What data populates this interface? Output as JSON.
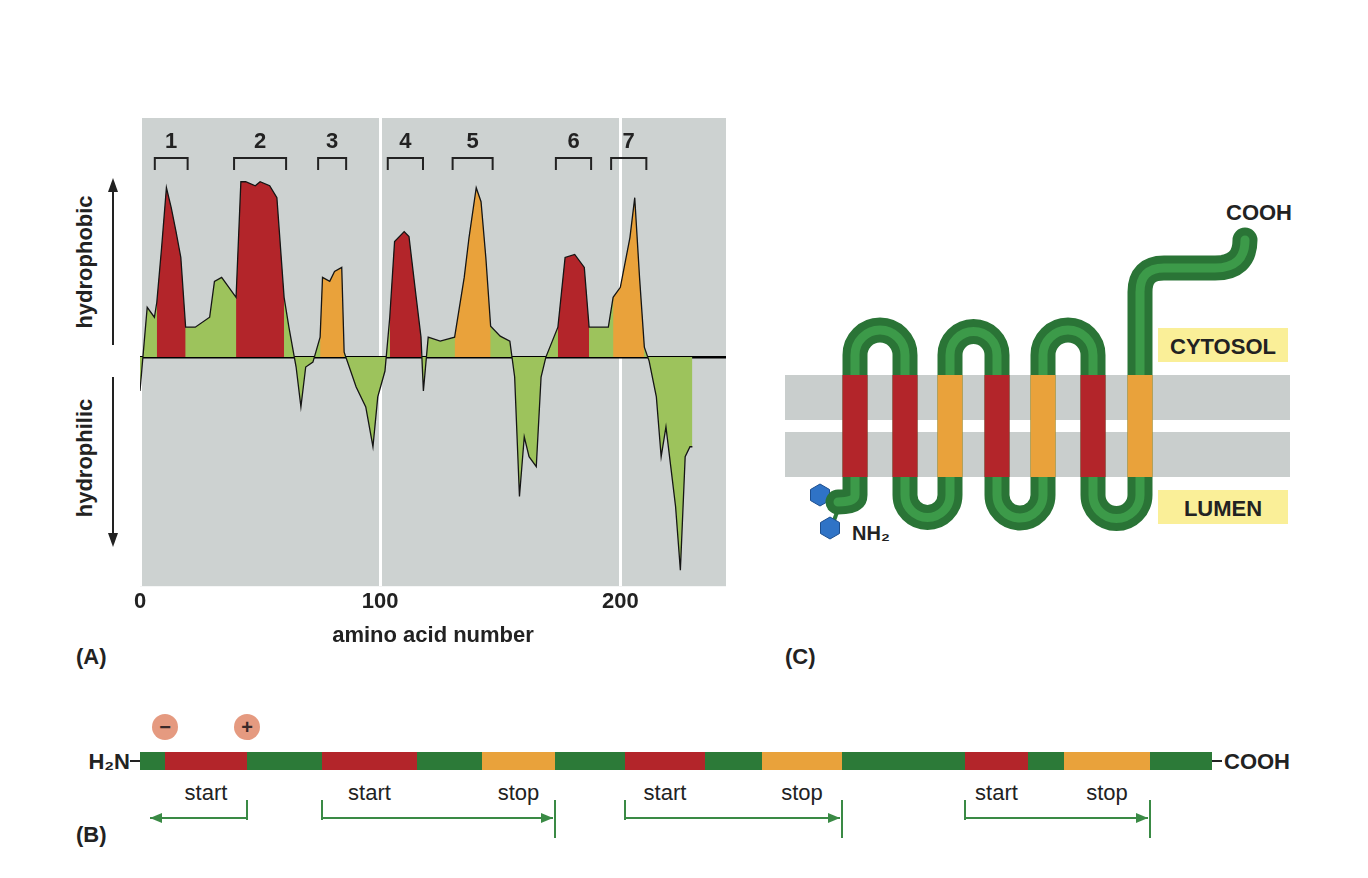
{
  "chart_data": {
    "type": "area",
    "panel_label": "(A)",
    "xlabel": "amino acid number",
    "y_label_top": "hydrophobic",
    "y_label_bottom": "hydrophilic",
    "x": [
      0,
      3,
      6,
      7,
      9,
      11,
      13,
      15,
      17,
      19,
      23,
      29,
      31,
      34,
      37,
      40,
      42,
      44,
      48,
      50,
      54,
      57,
      60,
      62,
      65,
      67,
      69,
      72,
      75,
      76,
      79,
      81,
      84,
      85,
      90,
      94,
      97,
      99,
      102,
      104,
      106,
      110,
      112,
      115,
      117,
      118,
      120,
      125,
      131,
      135,
      137,
      140,
      142,
      144,
      146,
      150,
      154,
      156,
      158,
      160,
      162,
      165,
      167,
      169,
      174,
      177,
      181,
      185,
      187,
      192,
      195,
      197,
      200,
      204,
      206,
      208,
      210,
      212,
      215,
      217,
      219,
      221,
      223,
      225,
      227,
      229,
      230
    ],
    "values": [
      -0.34,
      0.5,
      0.4,
      0.55,
      1.1,
      1.7,
      1.5,
      1.26,
      1.0,
      0.3,
      0.3,
      0.4,
      0.76,
      0.8,
      0.7,
      0.6,
      1.76,
      1.76,
      1.72,
      1.76,
      1.72,
      1.6,
      0.6,
      0.3,
      -0.1,
      -0.5,
      -0.1,
      -0.05,
      0.2,
      0.8,
      0.76,
      0.86,
      0.9,
      0.05,
      -0.3,
      -0.5,
      -0.9,
      -0.4,
      -0.14,
      0.4,
      1.16,
      1.26,
      1.21,
      0.6,
      0.2,
      -0.34,
      0.2,
      0.16,
      0.2,
      0.8,
      1.2,
      1.7,
      1.56,
      1.0,
      0.31,
      0.21,
      0.16,
      -0.2,
      -1.4,
      -0.8,
      -1.0,
      -1.1,
      -0.2,
      0.0,
      0.3,
      1.0,
      1.03,
      0.9,
      0.3,
      0.3,
      0.3,
      0.6,
      0.7,
      1.2,
      1.6,
      0.8,
      0.1,
      -0.04,
      -0.4,
      -1.0,
      -0.7,
      -1.1,
      -1.5,
      -2.14,
      -1.0,
      -0.9,
      -0.9
    ],
    "color": "#9dc35c",
    "xlim": [
      0,
      244
    ],
    "xticks": [
      0,
      100,
      200
    ],
    "ylim": [
      -2.3,
      2.4
    ],
    "yticks": [
      0
    ],
    "tick_labels": "x",
    "grid": true,
    "segments": [
      {
        "label": "1",
        "range": [
          7,
          19
        ],
        "color": "#b3252a"
      },
      {
        "label": "2",
        "range": [
          40,
          60
        ],
        "color": "#b3252a"
      },
      {
        "label": "3",
        "range": [
          75,
          85
        ],
        "color": "#e9a23b"
      },
      {
        "label": "4",
        "range": [
          104,
          117
        ],
        "color": "#b3252a"
      },
      {
        "label": "5",
        "range": [
          131,
          146
        ],
        "color": "#e9a23b"
      },
      {
        "label": "6",
        "range": [
          174,
          187
        ],
        "color": "#b3252a"
      },
      {
        "label": "7",
        "range": [
          197,
          210
        ],
        "color": "#e9a23b"
      }
    ]
  },
  "panel_b": {
    "panel_label": "(B)",
    "n_terminus": "H₂N",
    "c_terminus": "COOH",
    "charges": [
      "−",
      "+"
    ],
    "segments": [
      {
        "color": "#2c7a38"
      },
      {
        "color": "#b3252a",
        "label": "start"
      },
      {
        "color": "#2c7a38"
      },
      {
        "color": "#b3252a",
        "label": "start"
      },
      {
        "color": "#2c7a38"
      },
      {
        "color": "#e9a23b",
        "label": "stop"
      },
      {
        "color": "#2c7a38"
      },
      {
        "color": "#b3252a",
        "label": "start"
      },
      {
        "color": "#2c7a38"
      },
      {
        "color": "#e9a23b",
        "label": "stop"
      },
      {
        "color": "#2c7a38"
      },
      {
        "color": "#b3252a",
        "label": "start"
      },
      {
        "color": "#2c7a38"
      },
      {
        "color": "#e9a23b",
        "label": "stop"
      },
      {
        "color": "#2c7a38"
      }
    ]
  },
  "panel_c": {
    "panel_label": "(C)",
    "n_terminus": "NH₂",
    "c_terminus": "COOH",
    "cytosol_label": "CYTOSOL",
    "lumen_label": "LUMEN",
    "helix_colors": [
      "#b3252a",
      "#b3252a",
      "#e9a23b",
      "#b3252a",
      "#e9a23b",
      "#b3252a",
      "#e9a23b"
    ]
  }
}
